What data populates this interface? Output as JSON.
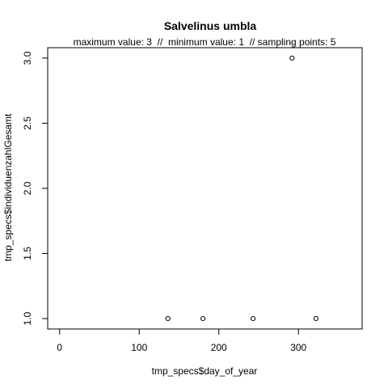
{
  "chart_data": {
    "type": "scatter",
    "title": "Salvelinus umbla",
    "subtitle": "maximum value: 3  //  minimum value: 1  // sampling points: 5",
    "xlabel": "tmp_specs$day_of_year",
    "ylabel": "tmp_specs$individuenzahlGesamt",
    "xlim": [
      -15,
      380
    ],
    "ylim": [
      0.92,
      3.08
    ],
    "xticks": [
      0,
      100,
      200,
      300
    ],
    "xtick_labels": [
      "0",
      "100",
      "200",
      "300"
    ],
    "yticks": [
      1.0,
      1.5,
      2.0,
      2.5,
      3.0
    ],
    "ytick_labels": [
      "1.0",
      "1.5",
      "2.0",
      "2.5",
      "3.0"
    ],
    "grid": false,
    "points": [
      {
        "x": 136,
        "y": 1
      },
      {
        "x": 180,
        "y": 1
      },
      {
        "x": 243,
        "y": 1
      },
      {
        "x": 292,
        "y": 3
      },
      {
        "x": 322,
        "y": 1
      }
    ]
  }
}
